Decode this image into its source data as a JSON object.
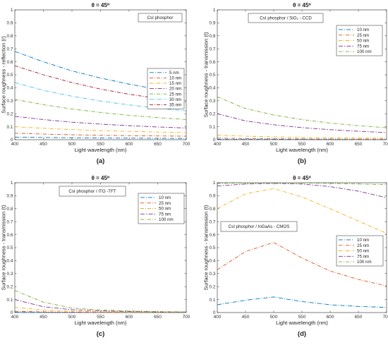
{
  "colors": [
    "#0072BD",
    "#D95319",
    "#EDB120",
    "#7E2F8E",
    "#77AC30",
    "#4DBEEE",
    "#A2142F"
  ],
  "chart_data": [
    {
      "type": "line",
      "panel_label": "(a)",
      "title": "θ = 45⁰",
      "annotation": "CsI phosphor",
      "xlabel": "Light wavelength (nm)",
      "ylabel": "Surface roughness - reflection (r)",
      "xlim": [
        400,
        700
      ],
      "ylim": [
        0,
        1
      ],
      "x_ticks": [
        "400",
        "450",
        "500",
        "550",
        "600",
        "650",
        "700"
      ],
      "y_ticks": [
        "0",
        "0.1",
        "0.2",
        "0.3",
        "0.4",
        "0.5",
        "0.6",
        "0.7",
        "0.8",
        "0.9",
        "1"
      ],
      "legend_position": "right",
      "x": [
        400,
        450,
        500,
        550,
        600,
        650,
        700
      ],
      "series": [
        {
          "name": "5 nm",
          "values": [
            0.02,
            0.017,
            0.015,
            0.013,
            0.012,
            0.011,
            0.01
          ]
        },
        {
          "name": "10 nm",
          "values": [
            0.05,
            0.043,
            0.038,
            0.034,
            0.031,
            0.029,
            0.027
          ]
        },
        {
          "name": "15 nm",
          "values": [
            0.1,
            0.088,
            0.078,
            0.07,
            0.064,
            0.059,
            0.055
          ]
        },
        {
          "name": "20 nm",
          "values": [
            0.18,
            0.155,
            0.135,
            0.12,
            0.108,
            0.098,
            0.09
          ]
        },
        {
          "name": "25 nm",
          "values": [
            0.31,
            0.27,
            0.236,
            0.21,
            0.188,
            0.17,
            0.155
          ]
        },
        {
          "name": "30 nm",
          "values": [
            0.44,
            0.38,
            0.335,
            0.298,
            0.268,
            0.243,
            0.222
          ]
        },
        {
          "name": "35 nm",
          "values": [
            0.57,
            0.5,
            0.44,
            0.39,
            0.35,
            0.318,
            0.29
          ]
        },
        {
          "name": "",
          "values": [
            0.68,
            0.6,
            0.53,
            0.475,
            0.428,
            0.388,
            0.355
          ]
        }
      ]
    },
    {
      "type": "line",
      "panel_label": "(b)",
      "title": "θ = 45⁰",
      "annotation": "CsI phosphor / SiO₂ - CCD",
      "xlabel": "Light wavelength (nm)",
      "ylabel": "Surface roughness - transmission (t)",
      "xlim": [
        400,
        700
      ],
      "ylim": [
        0,
        1
      ],
      "x_ticks": [
        "400",
        "450",
        "500",
        "550",
        "600",
        "650",
        "700"
      ],
      "y_ticks": [
        "0",
        "0.1",
        "0.2",
        "0.3",
        "0.4",
        "0.5",
        "0.6",
        "0.7",
        "0.8",
        "0.9",
        "1"
      ],
      "legend_position": "top-right",
      "x": [
        400,
        450,
        500,
        550,
        600,
        650,
        700
      ],
      "series": [
        {
          "name": "10 nm",
          "values": [
            0.003,
            0.002,
            0.002,
            0.002,
            0.001,
            0.001,
            0.001
          ]
        },
        {
          "name": "25 nm",
          "values": [
            0.012,
            0.009,
            0.007,
            0.006,
            0.005,
            0.004,
            0.004
          ]
        },
        {
          "name": "50 nm",
          "values": [
            0.035,
            0.027,
            0.022,
            0.018,
            0.015,
            0.013,
            0.012
          ]
        },
        {
          "name": "75 nm",
          "values": [
            0.2,
            0.145,
            0.115,
            0.093,
            0.077,
            0.065,
            0.055
          ]
        },
        {
          "name": "100 nm",
          "values": [
            0.33,
            0.24,
            0.19,
            0.155,
            0.128,
            0.108,
            0.092
          ]
        }
      ]
    },
    {
      "type": "line",
      "panel_label": "(c)",
      "title": "θ = 45⁰",
      "annotation": "CsI phosphor / ITO -TFT",
      "xlabel": "Light wavelength (nm)",
      "ylabel": "Surface roughness - transmission (t)",
      "xlim": [
        400,
        700
      ],
      "ylim": [
        0,
        1
      ],
      "x_ticks": [
        "400",
        "450",
        "500",
        "550",
        "600",
        "650",
        "700"
      ],
      "y_ticks": [
        "0",
        "0.1",
        "0.2",
        "0.3",
        "0.4",
        "0.5",
        "0.6",
        "0.7",
        "0.8",
        "0.9",
        "1"
      ],
      "legend_position": "top-right",
      "x": [
        400,
        450,
        500,
        550,
        600,
        650,
        700
      ],
      "series": [
        {
          "name": "10 nm",
          "values": [
            0.002,
            0.001,
            0.001,
            0.001,
            0.001,
            0.0,
            0.0
          ]
        },
        {
          "name": "25 nm",
          "values": [
            0.01,
            0.005,
            0.003,
            0.002,
            0.001,
            0.001,
            0.001
          ]
        },
        {
          "name": "50 nm",
          "values": [
            0.04,
            0.02,
            0.01,
            0.006,
            0.004,
            0.003,
            0.002
          ]
        },
        {
          "name": "75 nm",
          "values": [
            0.1,
            0.045,
            0.022,
            0.013,
            0.008,
            0.005,
            0.004
          ]
        },
        {
          "name": "100 nm",
          "values": [
            0.17,
            0.08,
            0.035,
            0.02,
            0.012,
            0.008,
            0.005
          ]
        }
      ]
    },
    {
      "type": "line",
      "panel_label": "(d)",
      "title": "θ = 45⁰",
      "annotation": "CsI phosphor / InGaAs - CMOS",
      "xlabel": "Light wavelength (nm)",
      "ylabel": "Surface roughness - transmission (t)",
      "xlim": [
        400,
        700
      ],
      "ylim": [
        0,
        1
      ],
      "x_ticks": [
        "400",
        "450",
        "500",
        "550",
        "600",
        "650",
        "700"
      ],
      "y_ticks": [
        "0",
        "0.1",
        "0.2",
        "0.3",
        "0.4",
        "0.5",
        "0.6",
        "0.7",
        "0.8",
        "0.9",
        "1"
      ],
      "legend_position": "bottom-right",
      "x": [
        400,
        450,
        500,
        550,
        600,
        650,
        700
      ],
      "series": [
        {
          "name": "10 nm",
          "values": [
            0.06,
            0.095,
            0.12,
            0.085,
            0.06,
            0.047,
            0.04
          ]
        },
        {
          "name": "25 nm",
          "values": [
            0.33,
            0.47,
            0.54,
            0.42,
            0.32,
            0.255,
            0.205
          ]
        },
        {
          "name": "50 nm",
          "values": [
            0.8,
            0.915,
            0.955,
            0.89,
            0.8,
            0.705,
            0.61
          ]
        },
        {
          "name": "75 nm",
          "values": [
            0.975,
            0.99,
            0.995,
            0.99,
            0.97,
            0.935,
            0.885
          ]
        },
        {
          "name": "100 nm",
          "values": [
            0.995,
            0.998,
            0.999,
            0.998,
            0.995,
            0.99,
            0.985
          ]
        }
      ]
    }
  ]
}
